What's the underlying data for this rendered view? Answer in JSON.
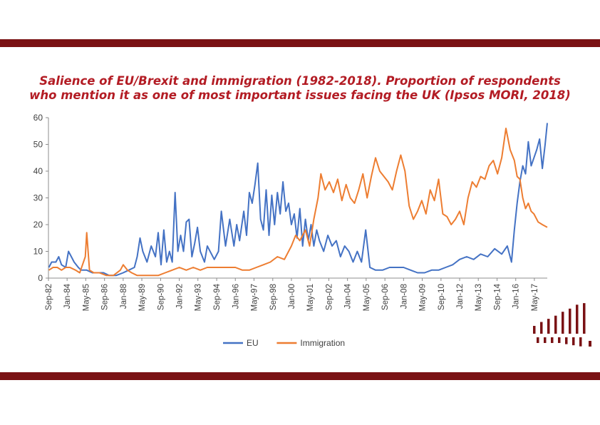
{
  "page": {
    "colors": {
      "band": "#7a1214",
      "title": "#b31c24"
    }
  },
  "title": {
    "line1": "Salience of EU/Brexit and immigration (1982-2018). Proportion of respondents",
    "line2": "who mention it as one of most important issues facing the UK (Ipsos MORI, 2018)"
  },
  "logo": {
    "icon": "bar-logo-icon",
    "color": "#7a1214"
  },
  "chart_data": {
    "type": "line",
    "title": "Salience of EU/Brexit and immigration (1982-2018). Proportion of respondents who mention it as one of most important issues facing the UK (Ipsos MORI, 2018)",
    "xlabel": "",
    "ylabel": "",
    "ylim": [
      0,
      60
    ],
    "yticks": [
      0,
      10,
      20,
      30,
      40,
      50,
      60
    ],
    "xlim": [
      1982.67,
      2018.25
    ],
    "xticks": [
      {
        "label": "Sep-82",
        "x": 1982.67
      },
      {
        "label": "Jan-84",
        "x": 1984.0
      },
      {
        "label": "May-85",
        "x": 1985.33
      },
      {
        "label": "Sep-86",
        "x": 1986.67
      },
      {
        "label": "Jan-88",
        "x": 1988.0
      },
      {
        "label": "May-89",
        "x": 1989.33
      },
      {
        "label": "Sep-90",
        "x": 1990.67
      },
      {
        "label": "Jan-92",
        "x": 1992.0
      },
      {
        "label": "May-93",
        "x": 1993.33
      },
      {
        "label": "Sep-94",
        "x": 1994.67
      },
      {
        "label": "Jan-96",
        "x": 1996.0
      },
      {
        "label": "May-97",
        "x": 1997.33
      },
      {
        "label": "Sep-98",
        "x": 1998.67
      },
      {
        "label": "Jan-00",
        "x": 2000.0
      },
      {
        "label": "May-01",
        "x": 2001.33
      },
      {
        "label": "Sep-02",
        "x": 2002.67
      },
      {
        "label": "Jan-04",
        "x": 2004.0
      },
      {
        "label": "May-05",
        "x": 2005.33
      },
      {
        "label": "Sep-06",
        "x": 2006.67
      },
      {
        "label": "Jan-08",
        "x": 2008.0
      },
      {
        "label": "May-09",
        "x": 2009.33
      },
      {
        "label": "Sep-10",
        "x": 2010.67
      },
      {
        "label": "Jan-12",
        "x": 2012.0
      },
      {
        "label": "May-13",
        "x": 2013.33
      },
      {
        "label": "Sep-14",
        "x": 2014.67
      },
      {
        "label": "Jan-16",
        "x": 2016.0
      },
      {
        "label": "May-17",
        "x": 2017.33
      }
    ],
    "grid": false,
    "legend": "bottom-center",
    "series": [
      {
        "name": "EU",
        "color": "#4472c4",
        "points": [
          [
            1982.7,
            4
          ],
          [
            1982.9,
            6
          ],
          [
            1983.2,
            6
          ],
          [
            1983.4,
            8
          ],
          [
            1983.6,
            5
          ],
          [
            1983.9,
            4
          ],
          [
            1984.1,
            10
          ],
          [
            1984.3,
            8
          ],
          [
            1984.5,
            6
          ],
          [
            1984.8,
            4
          ],
          [
            1985.0,
            3
          ],
          [
            1985.4,
            3
          ],
          [
            1985.8,
            2
          ],
          [
            1986.2,
            2
          ],
          [
            1986.6,
            2
          ],
          [
            1987.0,
            1
          ],
          [
            1987.5,
            1
          ],
          [
            1988.0,
            2
          ],
          [
            1988.4,
            3
          ],
          [
            1988.8,
            4
          ],
          [
            1989.0,
            8
          ],
          [
            1989.2,
            15
          ],
          [
            1989.4,
            10
          ],
          [
            1989.7,
            6
          ],
          [
            1990.0,
            12
          ],
          [
            1990.3,
            8
          ],
          [
            1990.5,
            17
          ],
          [
            1990.7,
            5
          ],
          [
            1990.9,
            18
          ],
          [
            1991.1,
            6
          ],
          [
            1991.3,
            10
          ],
          [
            1991.5,
            6
          ],
          [
            1991.7,
            32
          ],
          [
            1991.9,
            10
          ],
          [
            1992.1,
            16
          ],
          [
            1992.3,
            10
          ],
          [
            1992.5,
            21
          ],
          [
            1992.7,
            22
          ],
          [
            1992.9,
            8
          ],
          [
            1993.1,
            13
          ],
          [
            1993.3,
            19
          ],
          [
            1993.5,
            10
          ],
          [
            1993.8,
            6
          ],
          [
            1994.0,
            12
          ],
          [
            1994.3,
            9
          ],
          [
            1994.5,
            7
          ],
          [
            1994.8,
            10
          ],
          [
            1995.0,
            25
          ],
          [
            1995.3,
            12
          ],
          [
            1995.6,
            22
          ],
          [
            1995.9,
            12
          ],
          [
            1996.1,
            20
          ],
          [
            1996.3,
            14
          ],
          [
            1996.6,
            25
          ],
          [
            1996.8,
            16
          ],
          [
            1997.0,
            32
          ],
          [
            1997.2,
            28
          ],
          [
            1997.4,
            35
          ],
          [
            1997.6,
            43
          ],
          [
            1997.8,
            22
          ],
          [
            1998.0,
            18
          ],
          [
            1998.2,
            33
          ],
          [
            1998.4,
            16
          ],
          [
            1998.6,
            31
          ],
          [
            1998.8,
            20
          ],
          [
            1999.0,
            32
          ],
          [
            1999.2,
            24
          ],
          [
            1999.4,
            36
          ],
          [
            1999.6,
            25
          ],
          [
            1999.8,
            28
          ],
          [
            2000.0,
            20
          ],
          [
            2000.2,
            24
          ],
          [
            2000.4,
            15
          ],
          [
            2000.6,
            26
          ],
          [
            2000.8,
            12
          ],
          [
            2001.0,
            22
          ],
          [
            2001.2,
            14
          ],
          [
            2001.4,
            20
          ],
          [
            2001.6,
            12
          ],
          [
            2001.8,
            18
          ],
          [
            2002.0,
            14
          ],
          [
            2002.3,
            10
          ],
          [
            2002.6,
            16
          ],
          [
            2002.9,
            12
          ],
          [
            2003.2,
            14
          ],
          [
            2003.5,
            8
          ],
          [
            2003.8,
            12
          ],
          [
            2004.1,
            10
          ],
          [
            2004.4,
            6
          ],
          [
            2004.7,
            10
          ],
          [
            2005.0,
            6
          ],
          [
            2005.3,
            18
          ],
          [
            2005.6,
            4
          ],
          [
            2006.0,
            3
          ],
          [
            2006.5,
            3
          ],
          [
            2007.0,
            4
          ],
          [
            2007.5,
            4
          ],
          [
            2008.0,
            4
          ],
          [
            2008.5,
            3
          ],
          [
            2009.0,
            2
          ],
          [
            2009.5,
            2
          ],
          [
            2010.0,
            3
          ],
          [
            2010.5,
            3
          ],
          [
            2011.0,
            4
          ],
          [
            2011.5,
            5
          ],
          [
            2012.0,
            7
          ],
          [
            2012.5,
            8
          ],
          [
            2013.0,
            7
          ],
          [
            2013.5,
            9
          ],
          [
            2014.0,
            8
          ],
          [
            2014.5,
            11
          ],
          [
            2015.0,
            9
          ],
          [
            2015.4,
            12
          ],
          [
            2015.7,
            6
          ],
          [
            2015.9,
            18
          ],
          [
            2016.1,
            28
          ],
          [
            2016.3,
            36
          ],
          [
            2016.5,
            42
          ],
          [
            2016.7,
            39
          ],
          [
            2016.9,
            51
          ],
          [
            2017.1,
            42
          ],
          [
            2017.3,
            45
          ],
          [
            2017.5,
            48
          ],
          [
            2017.7,
            52
          ],
          [
            2017.9,
            41
          ],
          [
            2018.1,
            50
          ],
          [
            2018.25,
            58
          ]
        ]
      },
      {
        "name": "Immigration",
        "color": "#ed7d31",
        "points": [
          [
            1982.7,
            3
          ],
          [
            1983.0,
            4
          ],
          [
            1983.3,
            4
          ],
          [
            1983.6,
            3
          ],
          [
            1983.9,
            4
          ],
          [
            1984.2,
            4
          ],
          [
            1984.6,
            3
          ],
          [
            1984.9,
            2
          ],
          [
            1985.1,
            5
          ],
          [
            1985.3,
            8
          ],
          [
            1985.4,
            17
          ],
          [
            1985.6,
            3
          ],
          [
            1985.9,
            2
          ],
          [
            1986.3,
            2
          ],
          [
            1986.8,
            1
          ],
          [
            1987.3,
            1
          ],
          [
            1987.8,
            3
          ],
          [
            1988.0,
            5
          ],
          [
            1988.3,
            3
          ],
          [
            1988.6,
            2
          ],
          [
            1989.0,
            1
          ],
          [
            1989.5,
            1
          ],
          [
            1990.0,
            1
          ],
          [
            1990.5,
            1
          ],
          [
            1991.0,
            2
          ],
          [
            1991.5,
            3
          ],
          [
            1992.0,
            4
          ],
          [
            1992.5,
            3
          ],
          [
            1993.0,
            4
          ],
          [
            1993.5,
            3
          ],
          [
            1994.0,
            4
          ],
          [
            1994.5,
            4
          ],
          [
            1995.0,
            4
          ],
          [
            1995.5,
            4
          ],
          [
            1996.0,
            4
          ],
          [
            1996.5,
            3
          ],
          [
            1997.0,
            3
          ],
          [
            1997.5,
            4
          ],
          [
            1998.0,
            5
          ],
          [
            1998.5,
            6
          ],
          [
            1999.0,
            8
          ],
          [
            1999.5,
            7
          ],
          [
            2000.0,
            12
          ],
          [
            2000.3,
            16
          ],
          [
            2000.6,
            14
          ],
          [
            2001.0,
            18
          ],
          [
            2001.3,
            12
          ],
          [
            2001.6,
            22
          ],
          [
            2001.9,
            30
          ],
          [
            2002.1,
            39
          ],
          [
            2002.4,
            33
          ],
          [
            2002.7,
            36
          ],
          [
            2003.0,
            32
          ],
          [
            2003.3,
            37
          ],
          [
            2003.6,
            29
          ],
          [
            2003.9,
            35
          ],
          [
            2004.2,
            30
          ],
          [
            2004.5,
            28
          ],
          [
            2004.8,
            33
          ],
          [
            2005.1,
            39
          ],
          [
            2005.4,
            30
          ],
          [
            2005.7,
            38
          ],
          [
            2006.0,
            45
          ],
          [
            2006.3,
            40
          ],
          [
            2006.6,
            38
          ],
          [
            2006.9,
            36
          ],
          [
            2007.2,
            33
          ],
          [
            2007.5,
            40
          ],
          [
            2007.8,
            46
          ],
          [
            2008.1,
            40
          ],
          [
            2008.4,
            27
          ],
          [
            2008.7,
            22
          ],
          [
            2009.0,
            25
          ],
          [
            2009.3,
            29
          ],
          [
            2009.6,
            24
          ],
          [
            2009.9,
            33
          ],
          [
            2010.2,
            29
          ],
          [
            2010.5,
            37
          ],
          [
            2010.8,
            24
          ],
          [
            2011.1,
            23
          ],
          [
            2011.4,
            20
          ],
          [
            2011.7,
            22
          ],
          [
            2012.0,
            25
          ],
          [
            2012.3,
            20
          ],
          [
            2012.6,
            30
          ],
          [
            2012.9,
            36
          ],
          [
            2013.2,
            34
          ],
          [
            2013.5,
            38
          ],
          [
            2013.8,
            37
          ],
          [
            2014.1,
            42
          ],
          [
            2014.4,
            44
          ],
          [
            2014.7,
            39
          ],
          [
            2015.0,
            45
          ],
          [
            2015.3,
            56
          ],
          [
            2015.6,
            48
          ],
          [
            2015.9,
            44
          ],
          [
            2016.1,
            38
          ],
          [
            2016.3,
            37
          ],
          [
            2016.5,
            30
          ],
          [
            2016.7,
            26
          ],
          [
            2016.9,
            28
          ],
          [
            2017.1,
            25
          ],
          [
            2017.3,
            24
          ],
          [
            2017.6,
            21
          ],
          [
            2017.9,
            20
          ],
          [
            2018.25,
            19
          ]
        ]
      }
    ]
  }
}
